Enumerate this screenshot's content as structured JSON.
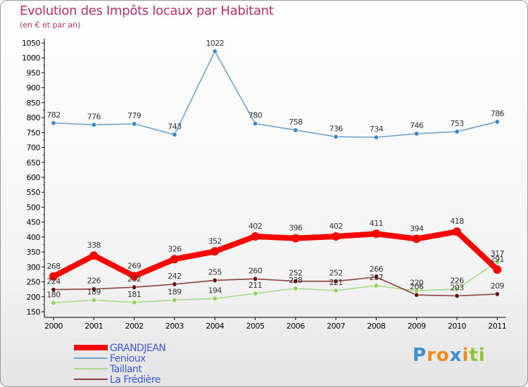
{
  "chart_data": {
    "type": "line",
    "title": "Evolution des Impôts locaux par Habitant",
    "subtitle": "(en € et par an)",
    "xlabel": "",
    "ylabel": "",
    "ylim": [
      150,
      1050
    ],
    "ytick_step": 50,
    "grid": false,
    "legend_position": "bottom-left",
    "categories": [
      "2000",
      "2001",
      "2002",
      "2003",
      "2004",
      "2005",
      "2006",
      "2007",
      "2008",
      "2009",
      "2010",
      "2011"
    ],
    "series": [
      {
        "name": "GRANDJEAN",
        "color": "#ff0000",
        "marker_color": "#ff0000",
        "emphasized": true,
        "values": [
          268,
          338,
          269,
          326,
          352,
          402,
          396,
          402,
          411,
          394,
          418,
          291
        ],
        "labels": [
          "268",
          "338",
          "269",
          "326",
          "352",
          "402",
          "396",
          "402",
          "411",
          "394",
          "418",
          "291"
        ]
      },
      {
        "name": "Fenioux",
        "color": "#6fa2cc",
        "marker_color": "#3d86c6",
        "emphasized": false,
        "values": [
          782,
          776,
          779,
          743,
          1022,
          780,
          758,
          736,
          734,
          746,
          753,
          786
        ],
        "labels": [
          "782",
          "776",
          "779",
          "743",
          "1022",
          "780",
          "758",
          "736",
          "734",
          "746",
          "753",
          "786"
        ]
      },
      {
        "name": "Taillant",
        "color": "#a8dc8a",
        "marker_color": "#8fd35a",
        "emphasized": false,
        "values": [
          180,
          189,
          181,
          189,
          194,
          211,
          228,
          221,
          237,
          220,
          226,
          317
        ],
        "labels": [
          "180",
          "189",
          "181",
          "189",
          "194",
          "211",
          "228",
          "221",
          "237",
          "220",
          "226",
          "317"
        ]
      },
      {
        "name": "La Frédière",
        "color": "#8a4040",
        "marker_color": "#6a1010",
        "emphasized": false,
        "values": [
          224,
          226,
          232,
          242,
          255,
          260,
          252,
          252,
          266,
          206,
          203,
          209
        ],
        "labels": [
          "224",
          "226",
          "232",
          "242",
          "255",
          "260",
          "252",
          "252",
          "266",
          "206",
          "203",
          "209"
        ]
      }
    ]
  },
  "logo": {
    "text": "Proxiti",
    "letters": [
      "P",
      "r",
      "o",
      "x",
      "i",
      "t",
      "i"
    ],
    "colors": [
      "#3c8fcf",
      "#f28a1e",
      "#f28a1e",
      "#3c8fcf",
      "#f28a1e",
      "#8fc43a",
      "#8fc43a"
    ]
  },
  "colors": {
    "legend_text": "#3d58d6",
    "title": "#b0336a",
    "axis": "#000000"
  }
}
